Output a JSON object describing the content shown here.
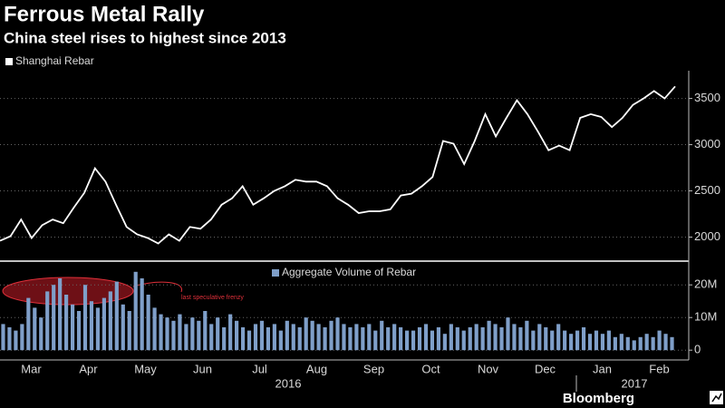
{
  "chart_data": [
    {
      "type": "line",
      "title": "Ferrous Metal Rally",
      "subtitle": "China steel rises to highest since 2013",
      "series": [
        {
          "name": "Shanghai Rebar",
          "color": "#ffffff",
          "values": [
            1960,
            2010,
            2190,
            1990,
            2130,
            2190,
            2150,
            2320,
            2480,
            2745,
            2600,
            2350,
            2110,
            2030,
            1990,
            1930,
            2030,
            1960,
            2110,
            2090,
            2190,
            2350,
            2420,
            2550,
            2350,
            2420,
            2500,
            2550,
            2620,
            2600,
            2600,
            2550,
            2420,
            2350,
            2260,
            2280,
            2280,
            2300,
            2450,
            2470,
            2550,
            2650,
            3040,
            3010,
            2790,
            3040,
            3330,
            3090,
            3290,
            3480,
            3330,
            3140,
            2940,
            2990,
            2940,
            3290,
            3330,
            3300,
            3190,
            3290,
            3430,
            3500,
            3580,
            3500,
            3630
          ]
        }
      ],
      "ylim": [
        1750,
        3800
      ],
      "yticks": [
        2000,
        2500,
        3000,
        3500
      ],
      "grid": true
    },
    {
      "type": "bar",
      "series": [
        {
          "name": "Aggregate Volume of Rebar",
          "color": "#7f9fc9",
          "values": [
            8,
            7,
            6,
            8,
            16,
            13,
            10,
            18,
            20,
            22,
            17,
            14,
            12,
            20,
            15,
            13,
            16,
            18,
            21,
            14,
            12,
            24,
            22,
            17,
            13,
            11,
            10,
            9,
            11,
            8,
            10,
            9,
            12,
            8,
            10,
            7,
            11,
            9,
            7,
            6,
            8,
            9,
            7,
            8,
            6,
            9,
            8,
            7,
            10,
            9,
            8,
            7,
            9,
            10,
            8,
            7,
            8,
            7,
            8,
            6,
            9,
            7,
            8,
            7,
            6,
            6,
            7,
            8,
            6,
            7,
            5,
            8,
            7,
            6,
            7,
            8,
            7,
            9,
            8,
            7,
            10,
            8,
            7,
            9,
            6,
            8,
            7,
            6,
            8,
            6,
            5,
            6,
            7,
            5,
            6,
            5,
            6,
            4,
            5,
            4,
            3,
            4,
            5,
            4,
            6,
            5,
            4
          ]
        }
      ],
      "ylim": [
        -3,
        27
      ],
      "yticks": [
        0,
        {
          "value": 10,
          "label": "10M"
        },
        {
          "value": 20,
          "label": "20M"
        }
      ],
      "grid": true,
      "annotation": "last speculative frenzy",
      "month_labels": [
        "Mar",
        "Apr",
        "May",
        "Jun",
        "Jul",
        "Aug",
        "Sep",
        "Oct",
        "Nov",
        "Dec",
        "Jan",
        "Feb"
      ],
      "year_labels": [
        "2016",
        "2017"
      ],
      "source": "Bloomberg"
    }
  ]
}
